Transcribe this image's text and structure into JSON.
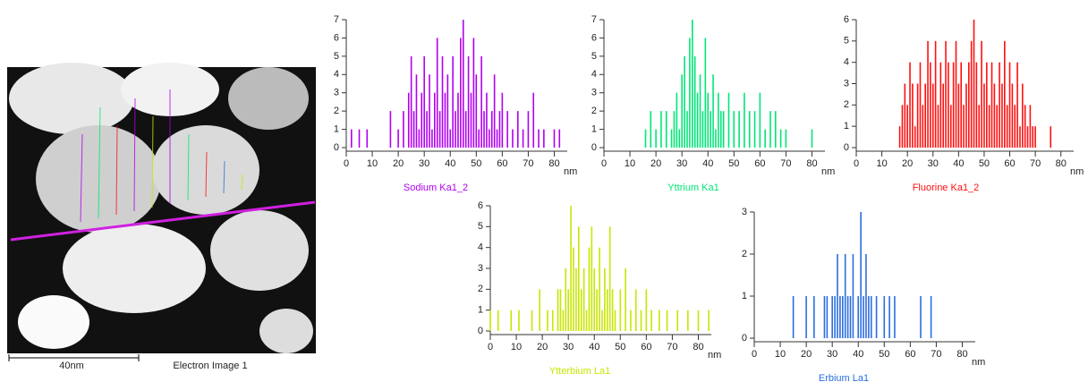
{
  "image": {
    "scale_label": "40nm",
    "caption": "Electron Image 1"
  },
  "chart_data": [
    {
      "type": "stem",
      "title": "Sodium Ka1_2",
      "xlabel": "nm",
      "color": "#b000f0",
      "x": [
        2,
        5,
        8,
        17,
        20,
        22,
        24,
        25,
        26,
        27,
        28,
        29,
        30,
        31,
        32,
        33,
        34,
        35,
        36,
        37,
        38,
        39,
        40,
        41,
        42,
        43,
        44,
        45,
        46,
        47,
        48,
        49,
        50,
        51,
        52,
        53,
        54,
        55,
        56,
        57,
        58,
        59,
        60,
        62,
        64,
        66,
        68,
        70,
        72,
        74,
        76,
        80,
        82
      ],
      "values": [
        1,
        1,
        1,
        2,
        1,
        2,
        3,
        5,
        2,
        4,
        1,
        3,
        5,
        2,
        4,
        1,
        3,
        6,
        2,
        5,
        3,
        4,
        1,
        5,
        2,
        3,
        6,
        7,
        2,
        5,
        3,
        6,
        4,
        1,
        5,
        2,
        3,
        1,
        2,
        4,
        1,
        2,
        3,
        2,
        1,
        2,
        1,
        2,
        3,
        1,
        1,
        1,
        1
      ],
      "xlim": [
        0,
        85
      ],
      "ylim": [
        0,
        7
      ],
      "xticks": [
        0,
        10,
        20,
        30,
        40,
        50,
        60,
        70,
        80
      ],
      "yticks": [
        0,
        1,
        2,
        3,
        4,
        5,
        6,
        7
      ]
    },
    {
      "type": "stem",
      "title": "Yttrium Ka1",
      "xlabel": "nm",
      "color": "#00e676",
      "x": [
        16,
        18,
        20,
        22,
        24,
        26,
        27,
        28,
        29,
        30,
        31,
        32,
        33,
        34,
        35,
        36,
        37,
        38,
        39,
        40,
        41,
        42,
        43,
        44,
        45,
        46,
        48,
        50,
        52,
        54,
        56,
        58,
        60,
        62,
        64,
        66,
        68,
        70,
        80
      ],
      "values": [
        1,
        2,
        1,
        2,
        2,
        1,
        2,
        3,
        1,
        4,
        5,
        2,
        6,
        7,
        5,
        3,
        4,
        2,
        6,
        3,
        2,
        4,
        1,
        3,
        2,
        2,
        3,
        2,
        2,
        3,
        2,
        2,
        3,
        1,
        2,
        2,
        1,
        1,
        1
      ],
      "xlim": [
        0,
        85
      ],
      "ylim": [
        0,
        7
      ],
      "xticks": [
        0,
        10,
        20,
        30,
        40,
        50,
        60,
        70,
        80
      ],
      "yticks": [
        0,
        1,
        2,
        3,
        4,
        5,
        6,
        7
      ]
    },
    {
      "type": "stem",
      "title": "Fluorine Ka1_2",
      "xlabel": "nm",
      "color": "#ff1010",
      "x": [
        17,
        18,
        19,
        20,
        21,
        22,
        23,
        24,
        25,
        26,
        27,
        28,
        29,
        30,
        31,
        32,
        33,
        34,
        35,
        36,
        37,
        38,
        39,
        40,
        41,
        42,
        43,
        44,
        45,
        46,
        47,
        48,
        49,
        50,
        51,
        52,
        53,
        54,
        55,
        56,
        57,
        58,
        59,
        60,
        61,
        62,
        63,
        64,
        65,
        66,
        67,
        68,
        69,
        70,
        76
      ],
      "values": [
        1,
        2,
        3,
        2,
        4,
        3,
        1,
        3,
        4,
        2,
        3,
        5,
        4,
        3,
        5,
        2,
        4,
        3,
        5,
        4,
        2,
        4,
        5,
        3,
        4,
        2,
        3,
        4,
        5,
        6,
        4,
        2,
        5,
        3,
        4,
        2,
        4,
        3,
        2,
        4,
        3,
        5,
        2,
        4,
        3,
        2,
        4,
        1,
        3,
        2,
        1,
        2,
        1,
        1,
        1
      ],
      "xlim": [
        0,
        85
      ],
      "ylim": [
        0,
        6
      ],
      "xticks": [
        0,
        10,
        20,
        30,
        40,
        50,
        60,
        70,
        80
      ],
      "yticks": [
        0,
        1,
        2,
        3,
        4,
        5,
        6
      ]
    },
    {
      "type": "stem",
      "title": "Ytterbium La1",
      "xlabel": "nm",
      "color": "#c8e600",
      "x": [
        0,
        3,
        8,
        11,
        16,
        19,
        22,
        24,
        26,
        27,
        28,
        29,
        30,
        31,
        32,
        33,
        34,
        35,
        36,
        37,
        38,
        39,
        40,
        41,
        42,
        43,
        44,
        45,
        46,
        47,
        48,
        50,
        52,
        54,
        56,
        58,
        60,
        62,
        65,
        68,
        72,
        76,
        80,
        84
      ],
      "values": [
        1,
        1,
        1,
        1,
        1,
        2,
        1,
        1,
        2,
        2,
        1,
        3,
        2,
        6,
        4,
        3,
        5,
        2,
        3,
        1,
        4,
        5,
        3,
        2,
        4,
        1,
        3,
        2,
        5,
        2,
        1,
        2,
        3,
        1,
        2,
        1,
        2,
        1,
        1,
        1,
        1,
        1,
        1,
        1
      ],
      "xlim": [
        0,
        85
      ],
      "ylim": [
        0,
        6
      ],
      "xticks": [
        0,
        10,
        20,
        30,
        40,
        50,
        60,
        70,
        80
      ],
      "yticks": [
        0,
        1,
        2,
        3,
        4,
        5,
        6
      ]
    },
    {
      "type": "stem",
      "title": "Erbium La1",
      "xlabel": "nm",
      "color": "#2a6ee0",
      "x": [
        15,
        20,
        23,
        27,
        28,
        30,
        31,
        32,
        33,
        34,
        35,
        36,
        37,
        38,
        40,
        41,
        42,
        43,
        44,
        45,
        47,
        50,
        52,
        54,
        64,
        68
      ],
      "values": [
        1,
        1,
        1,
        1,
        1,
        1,
        1,
        2,
        1,
        1,
        2,
        1,
        1,
        2,
        1,
        3,
        1,
        2,
        1,
        1,
        1,
        1,
        1,
        1,
        1,
        1
      ],
      "xlim": [
        0,
        85
      ],
      "ylim": [
        0,
        3
      ],
      "xticks": [
        0,
        10,
        20,
        30,
        40,
        50,
        60,
        70,
        80
      ],
      "yticks": [
        0,
        1,
        2,
        3
      ]
    }
  ]
}
